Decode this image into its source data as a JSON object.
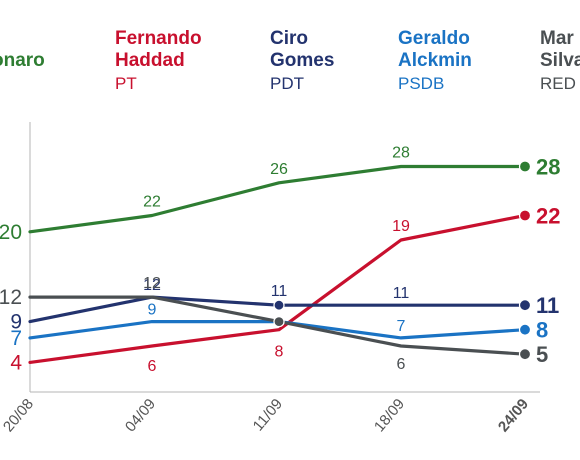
{
  "chart_data": {
    "type": "line",
    "categories": [
      "20/08",
      "04/09",
      "11/09",
      "18/09",
      "24/09"
    ],
    "ylim": [
      0,
      32
    ],
    "grid": false,
    "legend_placement": "top",
    "series": [
      {
        "name": "Jair Bolsonaro",
        "name_visible": "onaro",
        "party": "",
        "color": "#2e7d32",
        "values": [
          20,
          22,
          26,
          28,
          28
        ],
        "labels": [
          "20",
          "22",
          "26",
          "28",
          "28"
        ]
      },
      {
        "name": "Fernando Haddad",
        "name_lines": [
          "Fernando",
          "Haddad"
        ],
        "party": "PT",
        "color": "#c8102e",
        "values": [
          4,
          6,
          8,
          19,
          22
        ],
        "labels": [
          "4",
          "6",
          "8",
          "19",
          "22"
        ]
      },
      {
        "name": "Ciro Gomes",
        "name_lines": [
          "Ciro",
          "Gomes"
        ],
        "party": "PDT",
        "color": "#23336e",
        "values": [
          9,
          12,
          11,
          11,
          11
        ],
        "labels": [
          "9",
          "12",
          "11",
          "11",
          "11"
        ]
      },
      {
        "name": "Geraldo Alckmin",
        "name_lines": [
          "Geraldo",
          "Alckmin"
        ],
        "party": "PSDB",
        "color": "#1a73c4",
        "values": [
          7,
          9,
          9,
          7,
          8
        ],
        "labels": [
          "7",
          "9",
          "",
          "7",
          "8"
        ]
      },
      {
        "name": "Marina Silva",
        "name_lines": [
          "Mar",
          "Silva"
        ],
        "party": "RED",
        "color": "#4a4f52",
        "values": [
          12,
          12,
          9,
          6,
          5
        ],
        "labels": [
          "12",
          "12",
          "",
          "6",
          "5"
        ]
      }
    ]
  }
}
